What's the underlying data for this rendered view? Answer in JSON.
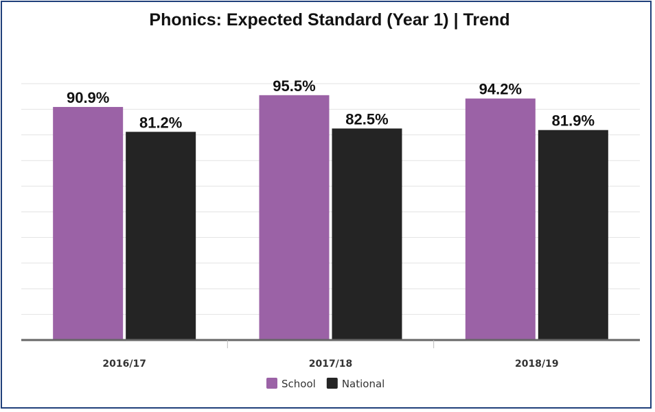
{
  "chart_data": {
    "type": "bar",
    "title": "Phonics: Expected Standard (Year 1) | Trend",
    "categories": [
      "2016/17",
      "2017/18",
      "2018/19"
    ],
    "series": [
      {
        "name": "School",
        "color": "#9b62a6",
        "values": [
          90.9,
          95.5,
          94.2
        ],
        "labels": [
          "90.9%",
          "95.5%",
          "94.2%"
        ]
      },
      {
        "name": "National",
        "color": "#242424",
        "values": [
          81.2,
          82.5,
          81.9
        ],
        "labels": [
          "81.2%",
          "82.5%",
          "81.9%"
        ]
      }
    ],
    "ylim": [
      0,
      100
    ],
    "grid": true,
    "legend": "bottom-center"
  }
}
